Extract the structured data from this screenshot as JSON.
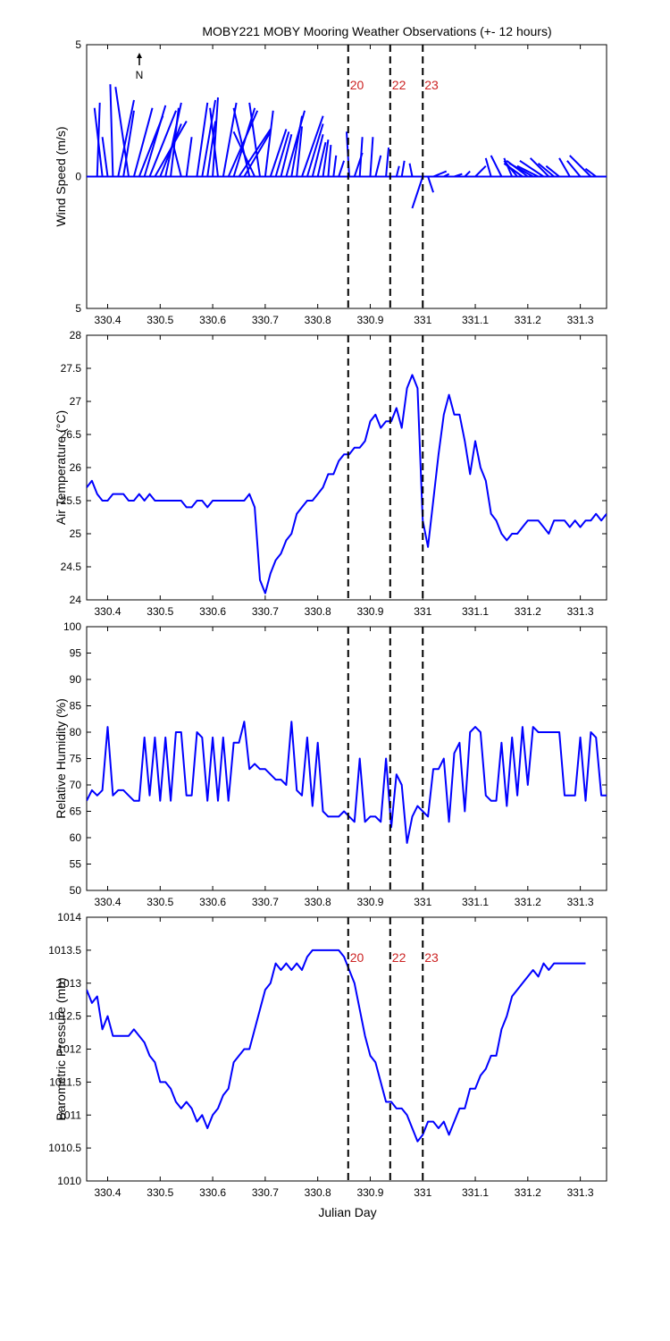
{
  "figure": {
    "title": "MOBY221 MOBY Mooring Weather Observations (+- 12 hours)",
    "north_label": "N",
    "xlabel": "Julian Day",
    "xlim": [
      330.36,
      331.35
    ],
    "xticks": [
      330.4,
      330.5,
      330.6,
      330.7,
      330.8,
      330.9,
      331,
      331.1,
      331.2,
      331.3
    ],
    "xtick_labels": [
      "330.4",
      "330.5",
      "330.6",
      "330.7",
      "330.8",
      "330.9",
      "331",
      "331.1",
      "331.2",
      "331.3"
    ],
    "markers": [
      {
        "x": 330.858,
        "label": "20"
      },
      {
        "x": 330.938,
        "label": "22"
      },
      {
        "x": 331.0,
        "label": "23"
      }
    ],
    "marker_color": "#cc2222",
    "line_color": "#0000ff"
  },
  "chart_data": [
    {
      "type": "line",
      "subtype": "wind-vector-stick",
      "ylabel": "Wind Speed (m/s)",
      "ylim": [
        -5,
        5
      ],
      "yticks": [
        5,
        0,
        -5
      ],
      "ytick_labels": [
        "5",
        "0",
        "5"
      ],
      "marker_labels_shown": true,
      "series": [
        {
          "x": [
            330.38,
            330.39,
            330.4,
            330.41,
            330.42,
            330.43,
            330.44,
            330.45,
            330.46,
            330.47,
            330.48,
            330.49,
            330.5,
            330.51,
            330.52,
            330.54,
            330.55,
            330.57,
            330.58,
            330.59,
            330.6,
            330.61,
            330.62,
            330.63,
            330.64,
            330.65,
            330.66,
            330.67,
            330.68,
            330.69,
            330.7,
            330.71,
            330.72,
            330.73,
            330.74,
            330.75,
            330.76,
            330.77,
            330.78,
            330.79,
            330.8,
            330.81,
            330.82,
            330.83,
            330.84,
            330.86,
            330.87,
            330.88,
            330.9,
            330.91,
            330.93,
            330.95,
            330.96,
            330.98,
            331.0,
            331.01,
            331.02,
            331.04,
            331.06,
            331.08,
            331.1,
            331.13,
            331.15,
            331.17,
            331.18,
            331.19,
            331.2,
            331.21,
            331.22,
            331.23,
            331.24,
            331.25,
            331.26,
            331.28,
            331.3,
            331.32,
            331.33
          ],
          "u": [
            0.1,
            -0.3,
            -0.2,
            -0.1,
            0.6,
            0.4,
            -0.5,
            0.7,
            0.9,
            0.8,
            1.0,
            1.2,
            0.8,
            0.6,
            0.3,
            -0.3,
            0.2,
            0.4,
            0.5,
            0.3,
            0.2,
            -0.3,
            0.5,
            1.1,
            0.8,
            1.2,
            1.0,
            -0.6,
            -0.8,
            -0.4,
            0.3,
            0.6,
            0.5,
            0.4,
            0.7,
            0.4,
            0.2,
            0.8,
            0.6,
            0.4,
            0.3,
            0.2,
            0.1,
            0.1,
            0.2,
            -0.1,
            0.3,
            0.1,
            0.1,
            0.2,
            0.1,
            0.1,
            0.1,
            -0.1,
            -0.4,
            0.2,
            0.5,
            0.2,
            0.3,
            0.2,
            0.4,
            -0.2,
            -0.4,
            -0.3,
            -0.5,
            -0.7,
            -0.8,
            -0.9,
            -0.8,
            -0.9,
            -0.7,
            -0.6,
            -0.5,
            -0.4,
            -0.5,
            -0.8,
            -0.4
          ],
          "v": [
            2.8,
            2.6,
            1.5,
            3.5,
            2.9,
            2.5,
            3.4,
            2.6,
            2.3,
            2.7,
            2.5,
            2.1,
            2.0,
            2.8,
            2.6,
            1.2,
            1.5,
            2.8,
            2.9,
            2.1,
            3.0,
            2.6,
            2.8,
            2.5,
            2.6,
            1.8,
            1.7,
            2.6,
            1.7,
            2.8,
            2.5,
            1.8,
            1.7,
            1.6,
            2.5,
            2.3,
            1.9,
            2.3,
            2.0,
            1.6,
            1.3,
            1.4,
            1.2,
            0.8,
            0.6,
            1.7,
            0.9,
            1.5,
            1.5,
            0.8,
            1.1,
            0.4,
            0.6,
            0.5,
            -1.2,
            -0.6,
            0.2,
            0.1,
            0.1,
            0.2,
            0.4,
            0.7,
            0.8,
            0.7,
            0.6,
            0.5,
            0.6,
            0.5,
            0.4,
            0.6,
            0.7,
            0.5,
            0.4,
            0.7,
            0.6,
            0.8,
            0.3
          ]
        }
      ]
    },
    {
      "type": "line",
      "ylabel": "Air Temperature (°C)",
      "ylim": [
        24,
        28
      ],
      "yticks": [
        24,
        24.5,
        25,
        25.5,
        26,
        26.5,
        27,
        27.5,
        28
      ],
      "ytick_labels": [
        "24",
        "24.5",
        "25",
        "25.5",
        "26",
        "26.5",
        "27",
        "27.5",
        "28"
      ],
      "series": [
        {
          "x": [
            330.36,
            330.37,
            330.38,
            330.39,
            330.4,
            330.41,
            330.42,
            330.43,
            330.44,
            330.45,
            330.46,
            330.47,
            330.48,
            330.49,
            330.5,
            330.52,
            330.54,
            330.55,
            330.56,
            330.57,
            330.58,
            330.59,
            330.6,
            330.62,
            330.64,
            330.66,
            330.67,
            330.68,
            330.69,
            330.7,
            330.71,
            330.72,
            330.73,
            330.74,
            330.75,
            330.76,
            330.77,
            330.78,
            330.79,
            330.8,
            330.81,
            330.82,
            330.83,
            330.84,
            330.85,
            330.86,
            330.87,
            330.88,
            330.89,
            330.9,
            330.91,
            330.92,
            330.93,
            330.94,
            330.95,
            330.96,
            330.97,
            330.98,
            330.99,
            331.0,
            331.01,
            331.02,
            331.03,
            331.04,
            331.05,
            331.06,
            331.07,
            331.08,
            331.09,
            331.1,
            331.11,
            331.12,
            331.13,
            331.14,
            331.15,
            331.16,
            331.17,
            331.18,
            331.19,
            331.2,
            331.21,
            331.22,
            331.23,
            331.24,
            331.25,
            331.26,
            331.27,
            331.28,
            331.29,
            331.3,
            331.31,
            331.32,
            331.33,
            331.34,
            331.35
          ],
          "y": [
            25.7,
            25.8,
            25.6,
            25.5,
            25.5,
            25.6,
            25.6,
            25.6,
            25.5,
            25.5,
            25.6,
            25.5,
            25.6,
            25.5,
            25.5,
            25.5,
            25.5,
            25.4,
            25.4,
            25.5,
            25.5,
            25.4,
            25.5,
            25.5,
            25.5,
            25.5,
            25.6,
            25.4,
            24.3,
            24.1,
            24.4,
            24.6,
            24.7,
            24.9,
            25.0,
            25.3,
            25.4,
            25.5,
            25.5,
            25.6,
            25.7,
            25.9,
            25.9,
            26.1,
            26.2,
            26.2,
            26.3,
            26.3,
            26.4,
            26.7,
            26.8,
            26.6,
            26.7,
            26.7,
            26.9,
            26.6,
            27.2,
            27.4,
            27.2,
            25.2,
            24.8,
            25.5,
            26.2,
            26.8,
            27.1,
            26.8,
            26.8,
            26.4,
            25.9,
            26.4,
            26.0,
            25.8,
            25.3,
            25.2,
            25.0,
            24.9,
            25.0,
            25.0,
            25.1,
            25.2,
            25.2,
            25.2,
            25.1,
            25.0,
            25.2,
            25.2,
            25.2,
            25.1,
            25.2,
            25.1,
            25.2,
            25.2,
            25.3,
            25.2,
            25.3
          ]
        }
      ]
    },
    {
      "type": "line",
      "ylabel": "Relative Humidity (%)",
      "ylim": [
        50,
        100
      ],
      "yticks": [
        50,
        55,
        60,
        65,
        70,
        75,
        80,
        85,
        90,
        95,
        100
      ],
      "ytick_labels": [
        "50",
        "55",
        "60",
        "65",
        "70",
        "75",
        "80",
        "85",
        "90",
        "95",
        "100"
      ],
      "series": [
        {
          "x": [
            330.36,
            330.37,
            330.38,
            330.39,
            330.4,
            330.41,
            330.42,
            330.43,
            330.44,
            330.45,
            330.46,
            330.47,
            330.48,
            330.49,
            330.5,
            330.51,
            330.52,
            330.53,
            330.54,
            330.55,
            330.56,
            330.57,
            330.58,
            330.59,
            330.6,
            330.61,
            330.62,
            330.63,
            330.64,
            330.65,
            330.66,
            330.67,
            330.68,
            330.69,
            330.7,
            330.71,
            330.72,
            330.73,
            330.74,
            330.75,
            330.76,
            330.77,
            330.78,
            330.79,
            330.8,
            330.81,
            330.82,
            330.83,
            330.84,
            330.85,
            330.86,
            330.87,
            330.88,
            330.89,
            330.9,
            330.91,
            330.92,
            330.93,
            330.94,
            330.95,
            330.96,
            330.97,
            330.98,
            330.99,
            331.0,
            331.01,
            331.02,
            331.03,
            331.04,
            331.05,
            331.06,
            331.07,
            331.08,
            331.09,
            331.1,
            331.11,
            331.12,
            331.13,
            331.14,
            331.15,
            331.16,
            331.17,
            331.18,
            331.19,
            331.2,
            331.21,
            331.22,
            331.23,
            331.24,
            331.25,
            331.26,
            331.27,
            331.28,
            331.29,
            331.3,
            331.31,
            331.32,
            331.33,
            331.34,
            331.35
          ],
          "y": [
            67,
            69,
            68,
            69,
            81,
            68,
            69,
            69,
            68,
            67,
            67,
            79,
            68,
            79,
            67,
            79,
            67,
            80,
            80,
            68,
            68,
            80,
            79,
            67,
            79,
            67,
            79,
            67,
            78,
            78,
            82,
            73,
            74,
            73,
            73,
            72,
            71,
            71,
            70,
            82,
            69,
            68,
            79,
            66,
            78,
            65,
            64,
            64,
            64,
            65,
            64,
            63,
            75,
            63,
            64,
            64,
            63,
            75,
            62,
            72,
            70,
            59,
            64,
            66,
            65,
            64,
            73,
            73,
            75,
            63,
            76,
            78,
            65,
            80,
            81,
            80,
            68,
            67,
            67,
            78,
            66,
            79,
            68,
            81,
            70,
            81,
            80,
            80,
            80,
            80,
            80,
            68,
            68,
            68,
            79,
            67,
            80,
            79,
            68,
            68
          ]
        }
      ]
    },
    {
      "type": "line",
      "ylabel": "Barometric Pressure (mb)",
      "ylim": [
        1010,
        1014
      ],
      "yticks": [
        1010,
        1010.5,
        1011,
        1011.5,
        1012,
        1012.5,
        1013,
        1013.5,
        1014
      ],
      "ytick_labels": [
        "1010",
        "1010.5",
        "1011",
        "1011.5",
        "1012",
        "1012.5",
        "1013",
        "1013.5",
        "1014"
      ],
      "marker_labels_shown": true,
      "series": [
        {
          "x": [
            330.36,
            330.37,
            330.38,
            330.39,
            330.4,
            330.41,
            330.42,
            330.43,
            330.44,
            330.45,
            330.46,
            330.47,
            330.48,
            330.49,
            330.5,
            330.51,
            330.52,
            330.53,
            330.54,
            330.55,
            330.56,
            330.57,
            330.58,
            330.59,
            330.6,
            330.61,
            330.62,
            330.63,
            330.64,
            330.65,
            330.66,
            330.67,
            330.68,
            330.69,
            330.7,
            330.71,
            330.72,
            330.73,
            330.74,
            330.75,
            330.76,
            330.77,
            330.78,
            330.79,
            330.8,
            330.81,
            330.82,
            330.83,
            330.84,
            330.85,
            330.86,
            330.87,
            330.88,
            330.89,
            330.9,
            330.91,
            330.92,
            330.93,
            330.94,
            330.95,
            330.96,
            330.97,
            330.98,
            330.99,
            331.0,
            331.01,
            331.02,
            331.03,
            331.04,
            331.05,
            331.06,
            331.07,
            331.08,
            331.09,
            331.1,
            331.11,
            331.12,
            331.13,
            331.14,
            331.15,
            331.16,
            331.17,
            331.18,
            331.19,
            331.2,
            331.21,
            331.22,
            331.23,
            331.24,
            331.25,
            331.26,
            331.27,
            331.28,
            331.29,
            331.3,
            331.31
          ],
          "y": [
            1012.9,
            1012.7,
            1012.8,
            1012.3,
            1012.5,
            1012.2,
            1012.2,
            1012.2,
            1012.2,
            1012.3,
            1012.2,
            1012.1,
            1011.9,
            1011.8,
            1011.5,
            1011.5,
            1011.4,
            1011.2,
            1011.1,
            1011.2,
            1011.1,
            1010.9,
            1011.0,
            1010.8,
            1011.0,
            1011.1,
            1011.3,
            1011.4,
            1011.8,
            1011.9,
            1012.0,
            1012.0,
            1012.3,
            1012.6,
            1012.9,
            1013.0,
            1013.3,
            1013.2,
            1013.3,
            1013.2,
            1013.3,
            1013.2,
            1013.4,
            1013.5,
            1013.5,
            1013.5,
            1013.5,
            1013.5,
            1013.5,
            1013.4,
            1013.2,
            1013.0,
            1012.6,
            1012.2,
            1011.9,
            1011.8,
            1011.5,
            1011.2,
            1011.2,
            1011.1,
            1011.1,
            1011.0,
            1010.8,
            1010.6,
            1010.7,
            1010.9,
            1010.9,
            1010.8,
            1010.9,
            1010.7,
            1010.9,
            1011.1,
            1011.1,
            1011.4,
            1011.4,
            1011.6,
            1011.7,
            1011.9,
            1011.9,
            1012.3,
            1012.5,
            1012.8,
            1012.9,
            1013.0,
            1013.1,
            1013.2,
            1013.1,
            1013.3,
            1013.2,
            1013.3,
            1013.3,
            1013.3,
            1013.3,
            1013.3,
            1013.3,
            1013.3
          ]
        }
      ]
    }
  ]
}
